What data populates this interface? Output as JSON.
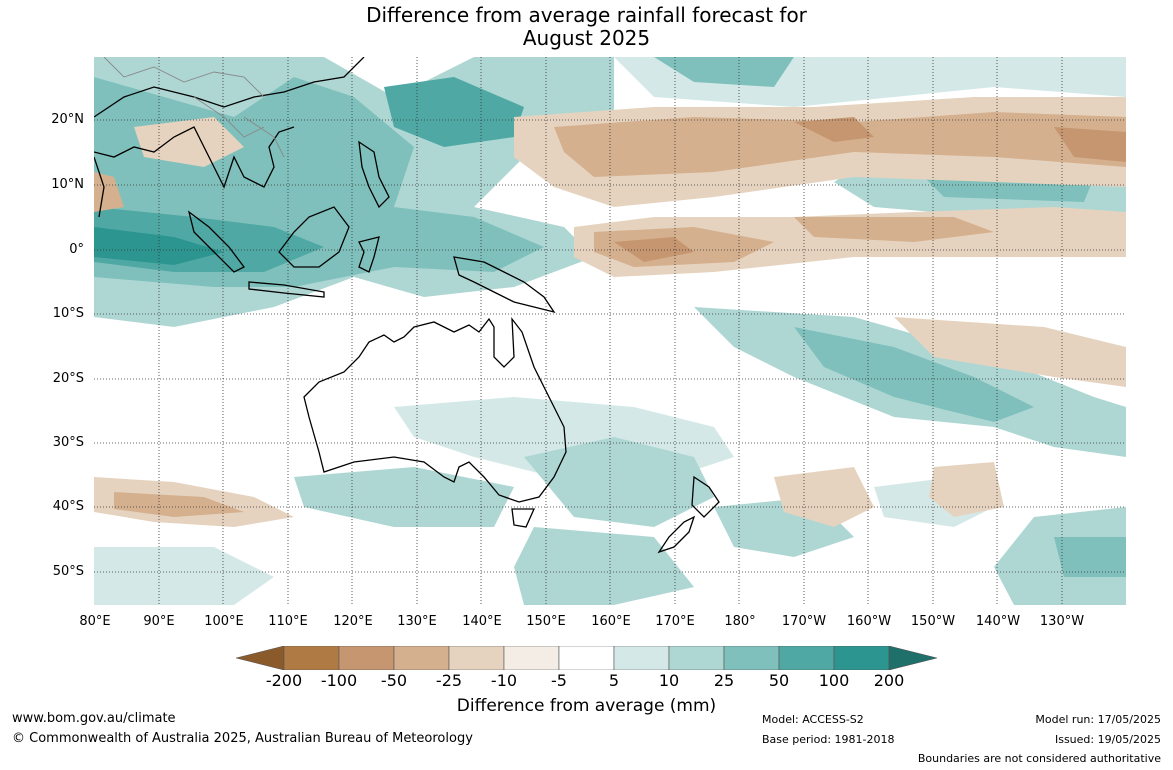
{
  "title": {
    "line1": "Difference from average rainfall forecast for",
    "line2": "August 2025"
  },
  "map": {
    "lat_labels": [
      "20°N",
      "10°N",
      "0°",
      "10°S",
      "20°S",
      "30°S",
      "40°S",
      "50°S"
    ],
    "lon_labels": [
      "80°E",
      "90°E",
      "100°E",
      "110°E",
      "120°E",
      "130°E",
      "140°E",
      "150°E",
      "160°E",
      "170°E",
      "180°",
      "170°W",
      "160°W",
      "150°W",
      "140°W",
      "130°W"
    ],
    "boundaries_note": "Boundaries are not considered authoritative"
  },
  "colorbar": {
    "label": "Difference from average (mm)",
    "ticks": [
      "-200",
      "-100",
      "-50",
      "-25",
      "-10",
      "-5",
      "5",
      "10",
      "25",
      "50",
      "100",
      "200"
    ],
    "colors": [
      "#8a5a2b",
      "#b07a45",
      "#c69670",
      "#d4b08e",
      "#e6d3bf",
      "#f3ede5",
      "#ffffff",
      "#d4e9e7",
      "#aed7d4",
      "#7fc0bc",
      "#4fa8a3",
      "#2c9590",
      "#1f6f6b"
    ]
  },
  "footer": {
    "website": "www.bom.gov.au/climate",
    "copyright": "© Commonwealth of Australia 2025, Australian Bureau of Meteorology",
    "model": "Model: ACCESS-S2",
    "base_period": "Base period: 1981-2018",
    "model_run": "Model run: 17/05/2025",
    "issued": "Issued: 19/05/2025",
    "disclaimer": "Boundaries are not considered authoritative"
  }
}
